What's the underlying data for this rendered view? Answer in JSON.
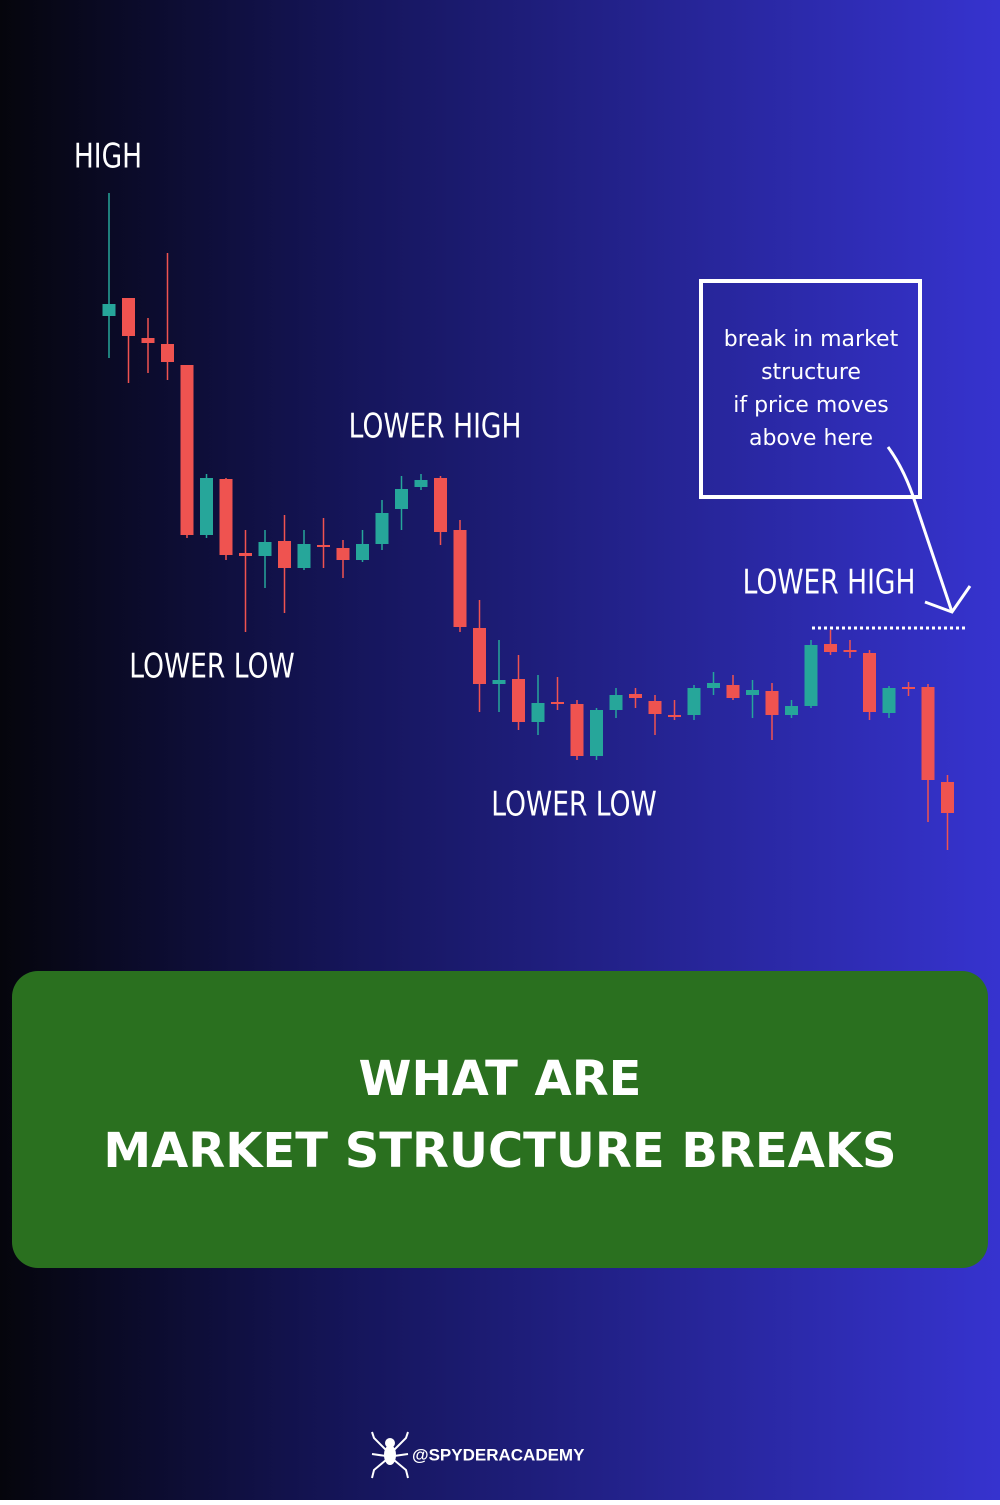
{
  "chart_data": {
    "type": "candlestick",
    "up_color": "#26a69a",
    "down_color": "#ef5350",
    "open": [
      584,
      602,
      562,
      556,
      535,
      365,
      421,
      347,
      344,
      359,
      332,
      355,
      352,
      340,
      356,
      391,
      413,
      422,
      370,
      272,
      216,
      221,
      178,
      198,
      196,
      144,
      190,
      206,
      199,
      185,
      185,
      212,
      215,
      205,
      209,
      185,
      194,
      256,
      250,
      247,
      187,
      213,
      213,
      118
    ],
    "high": [
      707,
      602,
      582,
      647,
      535,
      426,
      422,
      370,
      370,
      385,
      370,
      382,
      360,
      370,
      400,
      424,
      426,
      424,
      380,
      300,
      260,
      245,
      225,
      223,
      200,
      192,
      212,
      212,
      205,
      200,
      215,
      228,
      225,
      220,
      217,
      200,
      260,
      270,
      260,
      250,
      214,
      218,
      216,
      125
    ],
    "low": [
      542,
      517,
      527,
      520,
      362,
      362,
      340,
      268,
      312,
      287,
      330,
      332,
      322,
      338,
      350,
      370,
      410,
      355,
      268,
      188,
      188,
      170,
      165,
      190,
      140,
      140,
      182,
      192,
      165,
      180,
      180,
      205,
      200,
      182,
      160,
      182,
      192,
      245,
      242,
      180,
      182,
      204,
      78,
      50
    ],
    "close": [
      596,
      564,
      557,
      538,
      365,
      422,
      345,
      344,
      358,
      332,
      356,
      353,
      340,
      356,
      387,
      411,
      420,
      368,
      273,
      216,
      220,
      178,
      197,
      196,
      144,
      190,
      205,
      202,
      186,
      183,
      212,
      217,
      202,
      210,
      185,
      194,
      255,
      248,
      248,
      188,
      212,
      211,
      120,
      87
    ],
    "level": 272,
    "annotations": [
      "HIGH",
      "LOWER LOW",
      "LOWER HIGH",
      "LOWER LOW",
      "LOWER HIGH"
    ],
    "note": [
      "break in market",
      "structure",
      "if price moves",
      "above here"
    ]
  },
  "title": [
    "WHAT ARE",
    "MARKET STRUCTURE BREAKS"
  ],
  "handle": "@SPYDERACADEMY"
}
